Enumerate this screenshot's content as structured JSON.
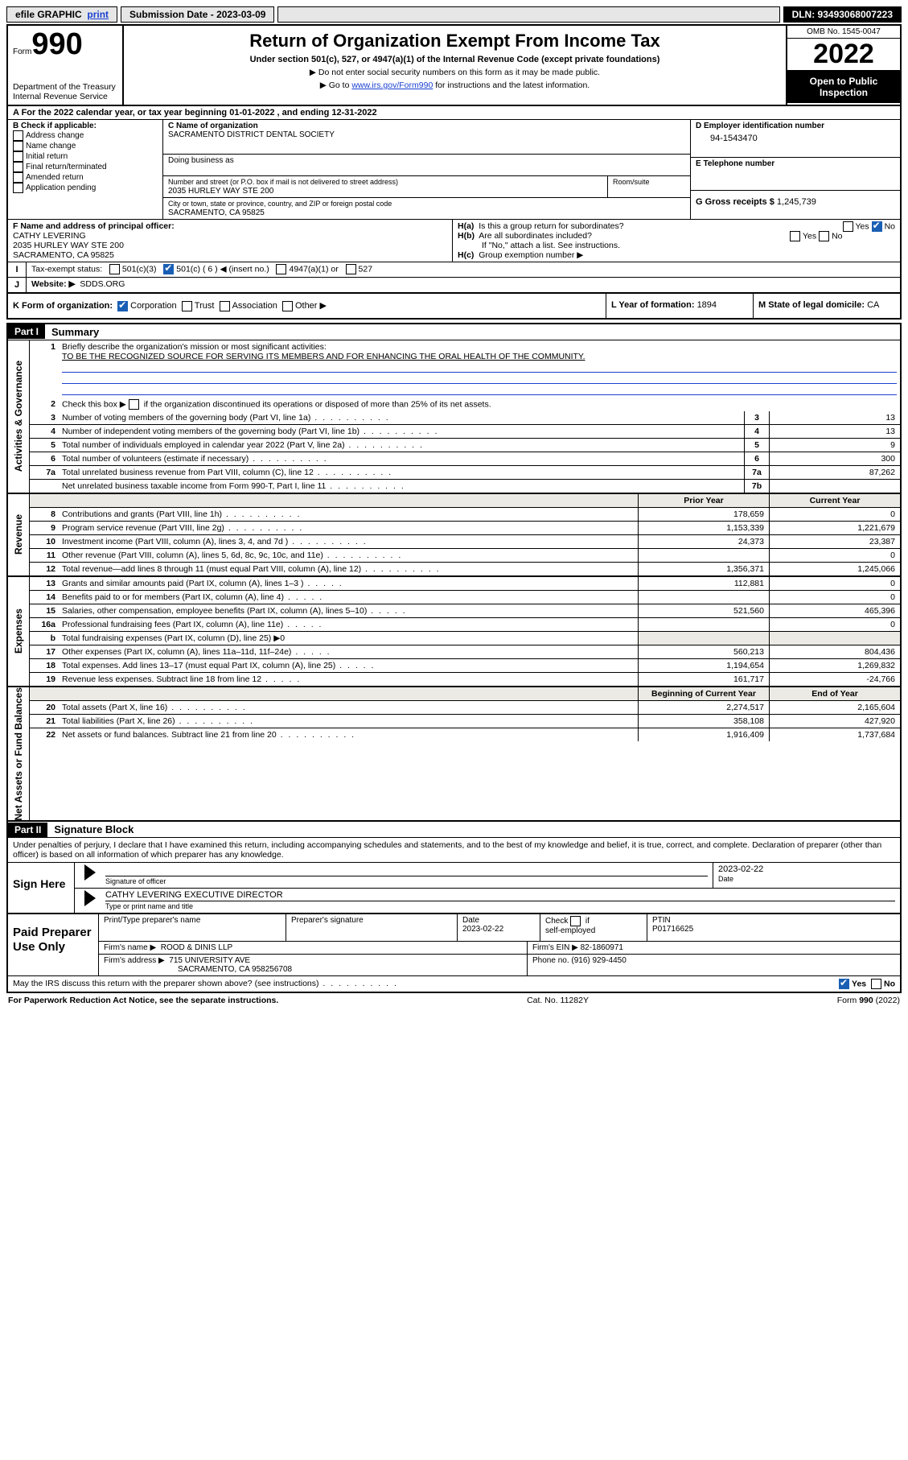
{
  "topbar": {
    "efile": "efile GRAPHIC",
    "print": "print",
    "sub_label": "Submission Date - ",
    "sub_date": "2023-03-09",
    "dln": "DLN: 93493068007223"
  },
  "header": {
    "form": "Form",
    "num": "990",
    "dept": "Department of the Treasury\nInternal Revenue Service",
    "title": "Return of Organization Exempt From Income Tax",
    "sub": "Under section 501(c), 527, or 4947(a)(1) of the Internal Revenue Code (except private foundations)",
    "note1": "▶ Do not enter social security numbers on this form as it may be made public.",
    "note2_pre": "▶ Go to ",
    "note2_link": "www.irs.gov/Form990",
    "note2_post": " for instructions and the latest information.",
    "omb": "OMB No. 1545-0047",
    "year": "2022",
    "open": "Open to Public Inspection"
  },
  "A": {
    "text": "A For the 2022 calendar year, or tax year beginning ",
    "begin": "01-01-2022",
    "mid": "   , and ending ",
    "end": "12-31-2022"
  },
  "B": {
    "label": "B Check if applicable:",
    "items": [
      "Address change",
      "Name change",
      "Initial return",
      "Final return/terminated",
      "Amended return",
      "Application pending"
    ]
  },
  "C": {
    "label": "C Name of organization",
    "org": "SACRAMENTO DISTRICT DENTAL SOCIETY",
    "dba": "Doing business as",
    "addr_label": "Number and street (or P.O. box if mail is not delivered to street address)",
    "room": "Room/suite",
    "addr": "2035 HURLEY WAY STE 200",
    "city_label": "City or town, state or province, country, and ZIP or foreign postal code",
    "city": "SACRAMENTO, CA  95825"
  },
  "D": {
    "label": "D Employer identification number",
    "val": "94-1543470"
  },
  "E": {
    "label": "E Telephone number",
    "val": ""
  },
  "G": {
    "label": "G Gross receipts $ ",
    "val": "1,245,739"
  },
  "F": {
    "label": "F Name and address of principal officer:",
    "name": "CATHY LEVERING",
    "addr1": "2035 HURLEY WAY STE 200",
    "addr2": "SACRAMENTO, CA  95825"
  },
  "H": {
    "a": "Is this a group return for subordinates?",
    "b": "Are all subordinates included?",
    "bnote": "If \"No,\" attach a list. See instructions.",
    "c": "Group exemption number ▶",
    "yes": "Yes",
    "no": "No"
  },
  "I": {
    "label": "Tax-exempt status:",
    "o1": "501(c)(3)",
    "o2": "501(c) ( 6 ) ◀ (insert no.)",
    "o3": "4947(a)(1) or",
    "o4": "527"
  },
  "J": {
    "label": "Website: ▶",
    "val": "SDDS.ORG"
  },
  "K": {
    "label": "K Form of organization:",
    "o1": "Corporation",
    "o2": "Trust",
    "o3": "Association",
    "o4": "Other ▶"
  },
  "L": {
    "label": "L Year of formation: ",
    "val": "1894"
  },
  "M": {
    "label": "M State of legal domicile: ",
    "val": "CA"
  },
  "part1": {
    "title": "Part I",
    "sub": "Summary",
    "q1": "Briefly describe the organization's mission or most significant activities:",
    "mission": "TO BE THE RECOGNIZED SOURCE FOR SERVING ITS MEMBERS AND FOR ENHANCING THE ORAL HEALTH OF THE COMMUNITY.",
    "q2": "Check this box ▶        if the organization discontinued its operations or disposed of more than 25% of its net assets.",
    "lines_gov": [
      {
        "n": "3",
        "d": "Number of voting members of the governing body (Part VI, line 1a)",
        "k": "3",
        "v": "13"
      },
      {
        "n": "4",
        "d": "Number of independent voting members of the governing body (Part VI, line 1b)",
        "k": "4",
        "v": "13"
      },
      {
        "n": "5",
        "d": "Total number of individuals employed in calendar year 2022 (Part V, line 2a)",
        "k": "5",
        "v": "9"
      },
      {
        "n": "6",
        "d": "Total number of volunteers (estimate if necessary)",
        "k": "6",
        "v": "300"
      },
      {
        "n": "7a",
        "d": "Total unrelated business revenue from Part VIII, column (C), line 12",
        "k": "7a",
        "v": "87,262"
      },
      {
        "n": "",
        "d": "Net unrelated business taxable income from Form 990-T, Part I, line 11",
        "k": "7b",
        "v": ""
      }
    ],
    "col_prior": "Prior Year",
    "col_curr": "Current Year",
    "rev": [
      {
        "n": "8",
        "d": "Contributions and grants (Part VIII, line 1h)",
        "p": "178,659",
        "c": "0"
      },
      {
        "n": "9",
        "d": "Program service revenue (Part VIII, line 2g)",
        "p": "1,153,339",
        "c": "1,221,679"
      },
      {
        "n": "10",
        "d": "Investment income (Part VIII, column (A), lines 3, 4, and 7d )",
        "p": "24,373",
        "c": "23,387"
      },
      {
        "n": "11",
        "d": "Other revenue (Part VIII, column (A), lines 5, 6d, 8c, 9c, 10c, and 11e)",
        "p": "",
        "c": "0"
      },
      {
        "n": "12",
        "d": "Total revenue—add lines 8 through 11 (must equal Part VIII, column (A), line 12)",
        "p": "1,356,371",
        "c": "1,245,066"
      }
    ],
    "exp": [
      {
        "n": "13",
        "d": "Grants and similar amounts paid (Part IX, column (A), lines 1–3 )",
        "p": "112,881",
        "c": "0"
      },
      {
        "n": "14",
        "d": "Benefits paid to or for members (Part IX, column (A), line 4)",
        "p": "",
        "c": "0"
      },
      {
        "n": "15",
        "d": "Salaries, other compensation, employee benefits (Part IX, column (A), lines 5–10)",
        "p": "521,560",
        "c": "465,396"
      },
      {
        "n": "16a",
        "d": "Professional fundraising fees (Part IX, column (A), line 11e)",
        "p": "",
        "c": "0"
      },
      {
        "n": "b",
        "d": "Total fundraising expenses (Part IX, column (D), line 25) ▶0",
        "p": "__shade__",
        "c": "__shade__"
      },
      {
        "n": "17",
        "d": "Other expenses (Part IX, column (A), lines 11a–11d, 11f–24e)",
        "p": "560,213",
        "c": "804,436"
      },
      {
        "n": "18",
        "d": "Total expenses. Add lines 13–17 (must equal Part IX, column (A), line 25)",
        "p": "1,194,654",
        "c": "1,269,832"
      },
      {
        "n": "19",
        "d": "Revenue less expenses. Subtract line 18 from line 12",
        "p": "161,717",
        "c": "-24,766"
      }
    ],
    "na_h1": "Beginning of Current Year",
    "na_h2": "End of Year",
    "na": [
      {
        "n": "20",
        "d": "Total assets (Part X, line 16)",
        "p": "2,274,517",
        "c": "2,165,604"
      },
      {
        "n": "21",
        "d": "Total liabilities (Part X, line 26)",
        "p": "358,108",
        "c": "427,920"
      },
      {
        "n": "22",
        "d": "Net assets or fund balances. Subtract line 21 from line 20",
        "p": "1,916,409",
        "c": "1,737,684"
      }
    ],
    "side_gov": "Activities & Governance",
    "side_rev": "Revenue",
    "side_exp": "Expenses",
    "side_na": "Net Assets or Fund Balances"
  },
  "part2": {
    "title": "Part II",
    "sub": "Signature Block",
    "decl": "Under penalties of perjury, I declare that I have examined this return, including accompanying schedules and statements, and to the best of my knowledge and belief, it is true, correct, and complete. Declaration of preparer (other than officer) is based on all information of which preparer has any knowledge.",
    "sign": "Sign Here",
    "sig_officer": "Signature of officer",
    "date": "Date",
    "sig_date": "2023-02-22",
    "officer": "CATHY LEVERING  EXECUTIVE DIRECTOR",
    "typed": "Type or print name and title",
    "paid": "Paid Preparer Use Only",
    "pp_name_l": "Print/Type preparer's name",
    "pp_sig_l": "Preparer's signature",
    "pp_date_l": "Date",
    "pp_date": "2023-02-22",
    "pp_check": "Check         if self-employed",
    "ptin_l": "PTIN",
    "ptin": "P01716625",
    "firm_l": "Firm's name    ▶",
    "firm": "ROOD & DINIS LLP",
    "ein_l": "Firm's EIN ▶ ",
    "ein": "82-1860971",
    "addr_l": "Firm's address ▶",
    "addr1": "715 UNIVERSITY AVE",
    "addr2": "SACRAMENTO, CA  958256708",
    "phone_l": "Phone no. ",
    "phone": "(916) 929-4450",
    "may": "May the IRS discuss this return with the preparer shown above? (see instructions)"
  },
  "footer": {
    "pra": "For Paperwork Reduction Act Notice, see the separate instructions.",
    "cat": "Cat. No. 11282Y",
    "form": "Form 990 (2022)"
  }
}
